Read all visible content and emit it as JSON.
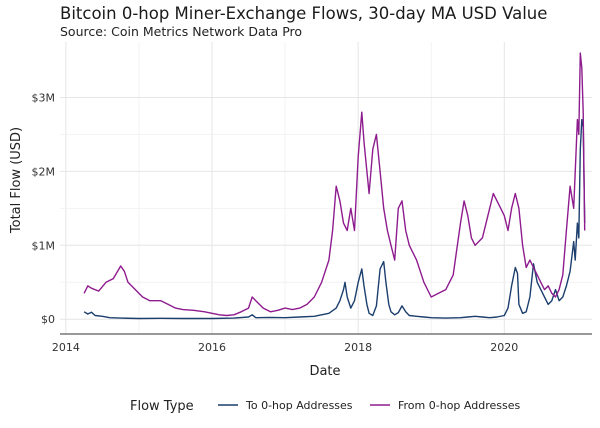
{
  "chart_data": {
    "type": "line",
    "title": "Bitcoin 0-hop Miner-Exchange Flows, 30-day MA USD Value",
    "subtitle": "Source: Coin Metrics Network Data Pro",
    "xlabel": "Date",
    "ylabel": "Total Flow (USD)",
    "xlim": [
      2013.92,
      2021.2
    ],
    "ylim": [
      -200000,
      3750000
    ],
    "x_ticks": [
      2014,
      2016,
      2018,
      2020
    ],
    "x_tick_labels": [
      "2014",
      "2016",
      "2018",
      "2020"
    ],
    "y_ticks": [
      0,
      1000000,
      2000000,
      3000000
    ],
    "y_tick_labels": [
      "$0",
      "$1M",
      "$2M",
      "$3M"
    ],
    "grid": true,
    "legend_position": "bottom",
    "legend_title": "Flow Type",
    "series": [
      {
        "name": "To 0-hop Addresses",
        "color": "#1c3f6e",
        "points": [
          [
            2014.25,
            100000
          ],
          [
            2014.3,
            70000
          ],
          [
            2014.35,
            95000
          ],
          [
            2014.4,
            50000
          ],
          [
            2014.5,
            40000
          ],
          [
            2014.6,
            20000
          ],
          [
            2014.75,
            15000
          ],
          [
            2015.0,
            10000
          ],
          [
            2015.3,
            12000
          ],
          [
            2015.6,
            10000
          ],
          [
            2016.0,
            10000
          ],
          [
            2016.3,
            15000
          ],
          [
            2016.5,
            30000
          ],
          [
            2016.55,
            60000
          ],
          [
            2016.6,
            20000
          ],
          [
            2016.8,
            25000
          ],
          [
            2017.0,
            20000
          ],
          [
            2017.2,
            30000
          ],
          [
            2017.4,
            40000
          ],
          [
            2017.5,
            60000
          ],
          [
            2017.6,
            80000
          ],
          [
            2017.7,
            150000
          ],
          [
            2017.75,
            250000
          ],
          [
            2017.8,
            400000
          ],
          [
            2017.82,
            500000
          ],
          [
            2017.85,
            300000
          ],
          [
            2017.9,
            150000
          ],
          [
            2017.95,
            250000
          ],
          [
            2018.0,
            500000
          ],
          [
            2018.05,
            680000
          ],
          [
            2018.08,
            450000
          ],
          [
            2018.12,
            200000
          ],
          [
            2018.15,
            80000
          ],
          [
            2018.2,
            50000
          ],
          [
            2018.25,
            180000
          ],
          [
            2018.3,
            680000
          ],
          [
            2018.35,
            780000
          ],
          [
            2018.38,
            500000
          ],
          [
            2018.42,
            200000
          ],
          [
            2018.45,
            100000
          ],
          [
            2018.5,
            60000
          ],
          [
            2018.55,
            90000
          ],
          [
            2018.6,
            180000
          ],
          [
            2018.65,
            100000
          ],
          [
            2018.7,
            50000
          ],
          [
            2018.8,
            40000
          ],
          [
            2018.9,
            30000
          ],
          [
            2019.0,
            20000
          ],
          [
            2019.2,
            15000
          ],
          [
            2019.4,
            20000
          ],
          [
            2019.5,
            30000
          ],
          [
            2019.6,
            40000
          ],
          [
            2019.7,
            30000
          ],
          [
            2019.8,
            20000
          ],
          [
            2019.9,
            30000
          ],
          [
            2020.0,
            50000
          ],
          [
            2020.05,
            150000
          ],
          [
            2020.1,
            450000
          ],
          [
            2020.15,
            700000
          ],
          [
            2020.18,
            620000
          ],
          [
            2020.2,
            200000
          ],
          [
            2020.25,
            80000
          ],
          [
            2020.3,
            100000
          ],
          [
            2020.35,
            300000
          ],
          [
            2020.4,
            750000
          ],
          [
            2020.45,
            500000
          ],
          [
            2020.5,
            400000
          ],
          [
            2020.55,
            300000
          ],
          [
            2020.6,
            200000
          ],
          [
            2020.65,
            250000
          ],
          [
            2020.7,
            400000
          ],
          [
            2020.75,
            250000
          ],
          [
            2020.8,
            300000
          ],
          [
            2020.85,
            450000
          ],
          [
            2020.9,
            650000
          ],
          [
            2020.95,
            1050000
          ],
          [
            2020.97,
            800000
          ],
          [
            2021.0,
            1300000
          ],
          [
            2021.02,
            1100000
          ],
          [
            2021.04,
            2300000
          ],
          [
            2021.06,
            2700000
          ],
          [
            2021.08,
            2600000
          ],
          [
            2021.1,
            1300000
          ]
        ]
      },
      {
        "name": "From 0-hop Addresses",
        "color": "#8e1c8e",
        "points": [
          [
            2014.25,
            350000
          ],
          [
            2014.3,
            450000
          ],
          [
            2014.35,
            420000
          ],
          [
            2014.45,
            380000
          ],
          [
            2014.55,
            500000
          ],
          [
            2014.65,
            550000
          ],
          [
            2014.75,
            720000
          ],
          [
            2014.8,
            650000
          ],
          [
            2014.85,
            500000
          ],
          [
            2014.95,
            400000
          ],
          [
            2015.05,
            300000
          ],
          [
            2015.15,
            250000
          ],
          [
            2015.3,
            250000
          ],
          [
            2015.4,
            200000
          ],
          [
            2015.5,
            150000
          ],
          [
            2015.6,
            130000
          ],
          [
            2015.75,
            120000
          ],
          [
            2015.9,
            100000
          ],
          [
            2016.0,
            80000
          ],
          [
            2016.1,
            60000
          ],
          [
            2016.2,
            50000
          ],
          [
            2016.3,
            60000
          ],
          [
            2016.4,
            100000
          ],
          [
            2016.5,
            150000
          ],
          [
            2016.55,
            300000
          ],
          [
            2016.6,
            250000
          ],
          [
            2016.7,
            150000
          ],
          [
            2016.8,
            100000
          ],
          [
            2016.9,
            120000
          ],
          [
            2017.0,
            150000
          ],
          [
            2017.1,
            130000
          ],
          [
            2017.2,
            150000
          ],
          [
            2017.3,
            200000
          ],
          [
            2017.4,
            300000
          ],
          [
            2017.5,
            500000
          ],
          [
            2017.6,
            800000
          ],
          [
            2017.65,
            1200000
          ],
          [
            2017.7,
            1800000
          ],
          [
            2017.75,
            1600000
          ],
          [
            2017.8,
            1300000
          ],
          [
            2017.85,
            1200000
          ],
          [
            2017.9,
            1500000
          ],
          [
            2017.95,
            1200000
          ],
          [
            2018.0,
            2200000
          ],
          [
            2018.05,
            2800000
          ],
          [
            2018.08,
            2400000
          ],
          [
            2018.12,
            2000000
          ],
          [
            2018.15,
            1700000
          ],
          [
            2018.2,
            2300000
          ],
          [
            2018.25,
            2500000
          ],
          [
            2018.3,
            2000000
          ],
          [
            2018.35,
            1500000
          ],
          [
            2018.4,
            1200000
          ],
          [
            2018.45,
            1000000
          ],
          [
            2018.5,
            800000
          ],
          [
            2018.55,
            1500000
          ],
          [
            2018.6,
            1600000
          ],
          [
            2018.65,
            1200000
          ],
          [
            2018.7,
            1000000
          ],
          [
            2018.8,
            800000
          ],
          [
            2018.9,
            500000
          ],
          [
            2019.0,
            300000
          ],
          [
            2019.1,
            350000
          ],
          [
            2019.2,
            400000
          ],
          [
            2019.3,
            600000
          ],
          [
            2019.4,
            1300000
          ],
          [
            2019.45,
            1600000
          ],
          [
            2019.5,
            1400000
          ],
          [
            2019.55,
            1100000
          ],
          [
            2019.6,
            1000000
          ],
          [
            2019.7,
            1100000
          ],
          [
            2019.8,
            1500000
          ],
          [
            2019.85,
            1700000
          ],
          [
            2019.9,
            1600000
          ],
          [
            2019.95,
            1500000
          ],
          [
            2020.0,
            1400000
          ],
          [
            2020.05,
            1200000
          ],
          [
            2020.1,
            1500000
          ],
          [
            2020.15,
            1700000
          ],
          [
            2020.2,
            1500000
          ],
          [
            2020.25,
            1000000
          ],
          [
            2020.3,
            700000
          ],
          [
            2020.35,
            800000
          ],
          [
            2020.4,
            700000
          ],
          [
            2020.45,
            600000
          ],
          [
            2020.5,
            500000
          ],
          [
            2020.55,
            400000
          ],
          [
            2020.6,
            450000
          ],
          [
            2020.65,
            350000
          ],
          [
            2020.7,
            300000
          ],
          [
            2020.75,
            400000
          ],
          [
            2020.8,
            600000
          ],
          [
            2020.85,
            1200000
          ],
          [
            2020.9,
            1800000
          ],
          [
            2020.95,
            1500000
          ],
          [
            2021.0,
            2700000
          ],
          [
            2021.02,
            2500000
          ],
          [
            2021.04,
            3600000
          ],
          [
            2021.06,
            3400000
          ],
          [
            2021.08,
            2800000
          ],
          [
            2021.1,
            1200000
          ]
        ]
      }
    ]
  }
}
